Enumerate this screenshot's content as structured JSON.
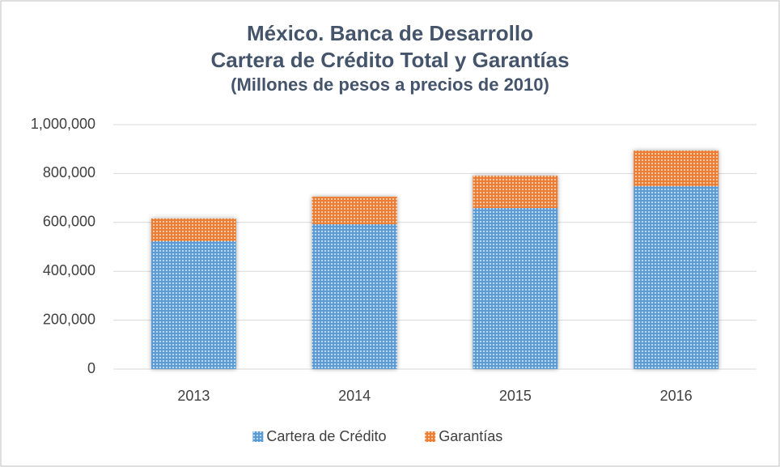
{
  "chart_data": {
    "type": "stacked_bar",
    "title": [
      "México. Banca de Desarrollo",
      "Cartera de Crédito Total y Garantías"
    ],
    "subtitle": "(Millones de pesos a precios de 2010)",
    "categories": [
      "2013",
      "2014",
      "2015",
      "2016"
    ],
    "series": [
      {
        "name": "Cartera de Crédito",
        "color": "#5b9bd5",
        "values": [
          523000,
          593000,
          659000,
          748000
        ]
      },
      {
        "name": "Garantías",
        "color": "#ed7d31",
        "values": [
          93000,
          112000,
          132000,
          146000
        ]
      }
    ],
    "ylim": [
      0,
      1000000
    ],
    "yticks": [
      0,
      {
        "value": 200000,
        "label": "200,000"
      },
      {
        "value": 400000,
        "label": "400,000"
      },
      {
        "value": 600000,
        "label": "600,000"
      },
      {
        "value": 800000,
        "label": "800,000"
      },
      {
        "value": 1000000,
        "label": "1,000,000"
      }
    ],
    "grid": true,
    "legend": "bottom"
  }
}
